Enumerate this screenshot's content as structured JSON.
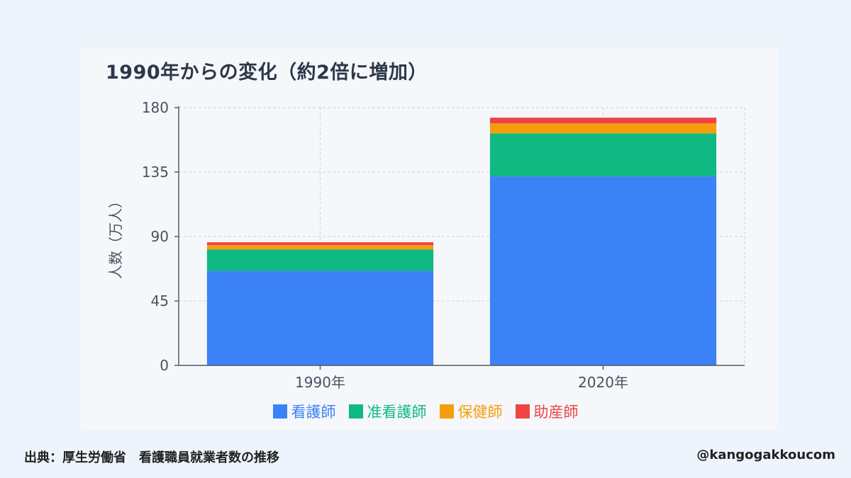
{
  "chart_data": {
    "type": "bar",
    "stacked": true,
    "title": "1990年からの変化（約2倍に増加）",
    "xlabel": "",
    "ylabel": "人数（万人）",
    "categories": [
      "1990年",
      "2020年"
    ],
    "ylim": [
      0,
      180
    ],
    "yticks": [
      0,
      45,
      90,
      135,
      180
    ],
    "grid": true,
    "legend_position": "bottom",
    "series": [
      {
        "name": "看護師",
        "color": "#3b82f6",
        "values": [
          66,
          132
        ]
      },
      {
        "name": "准看護師",
        "color": "#10b981",
        "values": [
          15,
          30
        ]
      },
      {
        "name": "保健師",
        "color": "#f59e0b",
        "values": [
          3,
          7
        ]
      },
      {
        "name": "助産師",
        "color": "#ef4444",
        "values": [
          2,
          4
        ]
      }
    ]
  },
  "footer": {
    "source": "出典：厚生労働省　看護職員就業者数の推移",
    "handle": "@kangogakkoucom"
  }
}
